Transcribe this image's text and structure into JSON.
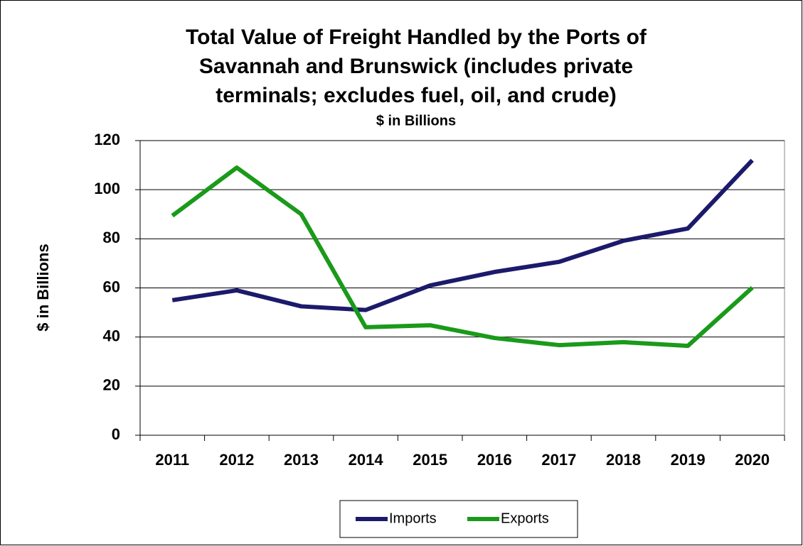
{
  "chart_data": {
    "type": "line",
    "title": [
      "Total Value of Freight Handled by the Ports of",
      "Savannah and Brunswick (includes private",
      "terminals; excludes fuel, oil, and crude)"
    ],
    "subtitle": "$ in Billions",
    "y_label": "$ in Billions",
    "categories": [
      "2011",
      "2012",
      "2013",
      "2014",
      "2015",
      "2016",
      "2017",
      "2018",
      "2019",
      "2020"
    ],
    "series": [
      {
        "name": "Imports",
        "color": "#1c1a6b",
        "values": [
          55,
          59,
          52.5,
          51,
          61,
          66.5,
          70.6,
          79.2,
          84.2,
          112
        ]
      },
      {
        "name": "Exports",
        "color": "#1a9a1a",
        "values": [
          89.4,
          109,
          90,
          44,
          44.8,
          39.6,
          36.7,
          37.9,
          36.4,
          60.1
        ]
      }
    ],
    "ylim": [
      0,
      120
    ],
    "yticks": [
      0,
      20,
      40,
      60,
      80,
      100,
      120
    ],
    "grid": true,
    "legend": "bottom"
  }
}
